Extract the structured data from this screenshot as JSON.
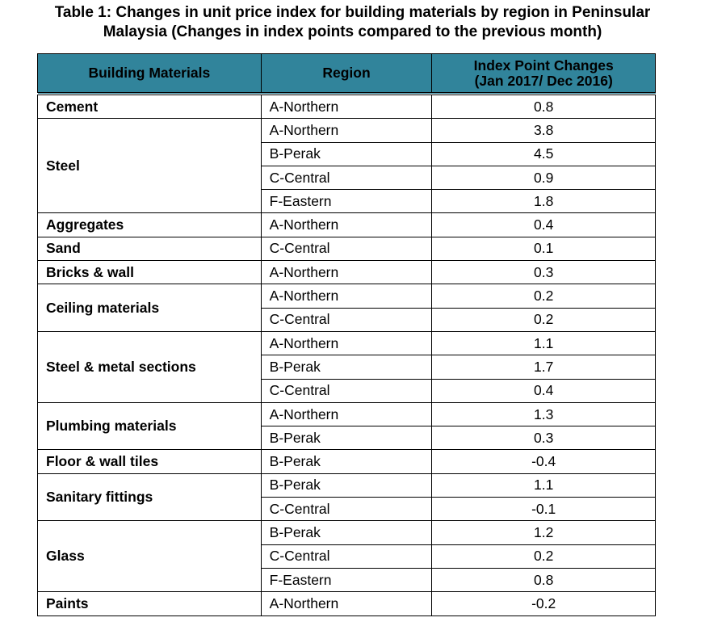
{
  "table": {
    "title": [
      "Table 1: Changes in unit price index for building materials by region in Peninsular",
      "Malaysia (Changes in index points compared to the previous month)"
    ],
    "headers": [
      "Building Materials",
      "Region",
      [
        "Index Point Changes",
        "(Jan 2017/ Dec 2016)"
      ]
    ],
    "groups": [
      {
        "material": "Cement",
        "rows": [
          {
            "region": "A-Northern",
            "value": 0.8
          }
        ]
      },
      {
        "material": "Steel",
        "rows": [
          {
            "region": "A-Northern",
            "value": 3.8
          },
          {
            "region": "B-Perak",
            "value": 4.5
          },
          {
            "region": "C-Central",
            "value": 0.9
          },
          {
            "region": "F-Eastern",
            "value": 1.8
          }
        ]
      },
      {
        "material": "Aggregates",
        "rows": [
          {
            "region": "A-Northern",
            "value": 0.4
          }
        ]
      },
      {
        "material": "Sand",
        "rows": [
          {
            "region": "C-Central",
            "value": 0.1
          }
        ]
      },
      {
        "material": "Bricks & wall",
        "rows": [
          {
            "region": "A-Northern",
            "value": 0.3
          }
        ]
      },
      {
        "material": "Ceiling materials",
        "rows": [
          {
            "region": "A-Northern",
            "value": 0.2
          },
          {
            "region": "C-Central",
            "value": 0.2
          }
        ]
      },
      {
        "material": "Steel & metal sections",
        "rows": [
          {
            "region": "A-Northern",
            "value": 1.1
          },
          {
            "region": "B-Perak",
            "value": 1.7
          },
          {
            "region": "C-Central",
            "value": 0.4
          }
        ]
      },
      {
        "material": "Plumbing materials",
        "rows": [
          {
            "region": "A-Northern",
            "value": 1.3
          },
          {
            "region": "B-Perak",
            "value": 0.3
          }
        ]
      },
      {
        "material": "Floor & wall tiles",
        "rows": [
          {
            "region": "B-Perak",
            "value": -0.4
          }
        ]
      },
      {
        "material": "Sanitary fittings",
        "rows": [
          {
            "region": "B-Perak",
            "value": 1.1
          },
          {
            "region": "C-Central",
            "value": -0.1
          }
        ]
      },
      {
        "material": "Glass",
        "rows": [
          {
            "region": "B-Perak",
            "value": 1.2
          },
          {
            "region": "C-Central",
            "value": 0.2
          },
          {
            "region": "F-Eastern",
            "value": 0.8
          }
        ]
      },
      {
        "material": "Paints",
        "rows": [
          {
            "region": "A-Northern",
            "value": -0.2
          }
        ]
      }
    ]
  }
}
